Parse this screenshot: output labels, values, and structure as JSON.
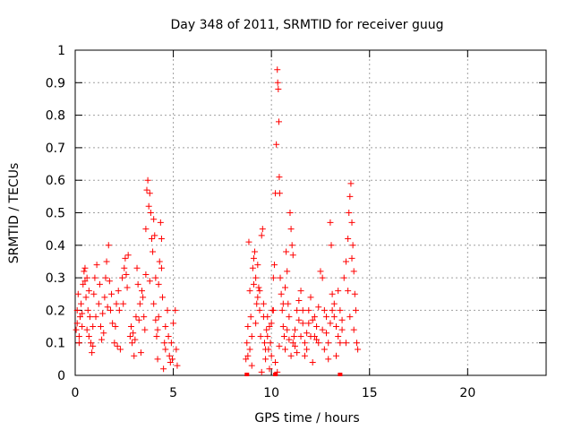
{
  "chart_data": {
    "type": "scatter",
    "title": "Day 348 of 2011, SRMTID for receiver guug",
    "xlabel": "GPS time / hours",
    "ylabel": "SRMTID / TECUs",
    "xlim": [
      0,
      24
    ],
    "ylim": [
      0,
      1
    ],
    "xticks": [
      0,
      5,
      10,
      15,
      20
    ],
    "yticks": [
      0,
      0.1,
      0.2,
      0.3,
      0.4,
      0.5,
      0.6,
      0.7,
      0.8,
      0.9,
      1
    ],
    "xtick_labels": [
      "0",
      "5",
      "10",
      "15",
      "20"
    ],
    "ytick_labels": [
      "0",
      "0.1",
      "0.2",
      "0.3",
      "0.4",
      "0.5",
      "0.6",
      "0.7",
      "0.8",
      "0.9",
      "1"
    ],
    "grid": true,
    "marker": "plus",
    "color": "#ff0000",
    "series": [
      {
        "points": [
          [
            0.05,
            0.14
          ],
          [
            0.1,
            0.2
          ],
          [
            0.15,
            0.25
          ],
          [
            0.2,
            0.1
          ],
          [
            0.25,
            0.18
          ],
          [
            0.3,
            0.22
          ],
          [
            0.35,
            0.15
          ],
          [
            0.4,
            0.28
          ],
          [
            0.45,
            0.32
          ],
          [
            0.5,
            0.33
          ],
          [
            0.55,
            0.24
          ],
          [
            0.6,
            0.3
          ],
          [
            0.65,
            0.2
          ],
          [
            0.7,
            0.12
          ],
          [
            0.75,
            0.18
          ],
          [
            0.8,
            0.1
          ],
          [
            0.85,
            0.07
          ],
          [
            0.9,
            0.09
          ],
          [
            0.95,
            0.25
          ],
          [
            1.0,
            0.3
          ],
          [
            1.1,
            0.34
          ],
          [
            1.2,
            0.22
          ],
          [
            1.3,
            0.15
          ],
          [
            1.4,
            0.19
          ],
          [
            1.5,
            0.24
          ],
          [
            1.6,
            0.35
          ],
          [
            1.7,
            0.4
          ],
          [
            1.75,
            0.29
          ],
          [
            1.8,
            0.2
          ],
          [
            1.9,
            0.16
          ],
          [
            2.0,
            0.1
          ],
          [
            2.1,
            0.22
          ],
          [
            2.2,
            0.26
          ],
          [
            2.3,
            0.08
          ],
          [
            2.4,
            0.3
          ],
          [
            2.5,
            0.33
          ],
          [
            2.6,
            0.31
          ],
          [
            2.7,
            0.37
          ],
          [
            2.8,
            0.12
          ],
          [
            2.9,
            0.1
          ],
          [
            3.0,
            0.06
          ],
          [
            3.1,
            0.18
          ],
          [
            3.2,
            0.28
          ],
          [
            3.3,
            0.22
          ],
          [
            3.4,
            0.26
          ],
          [
            3.5,
            0.18
          ],
          [
            3.55,
            0.14
          ],
          [
            3.6,
            0.45
          ],
          [
            3.65,
            0.57
          ],
          [
            3.7,
            0.6
          ],
          [
            3.75,
            0.52
          ],
          [
            3.8,
            0.56
          ],
          [
            3.85,
            0.5
          ],
          [
            3.9,
            0.42
          ],
          [
            3.95,
            0.38
          ],
          [
            4.0,
            0.48
          ],
          [
            4.05,
            0.43
          ],
          [
            4.1,
            0.3
          ],
          [
            4.15,
            0.12
          ],
          [
            4.2,
            0.05
          ],
          [
            4.25,
            0.18
          ],
          [
            4.3,
            0.35
          ],
          [
            4.35,
            0.47
          ],
          [
            4.4,
            0.42
          ],
          [
            4.45,
            0.24
          ],
          [
            4.5,
            0.02
          ],
          [
            4.55,
            0.1
          ],
          [
            4.6,
            0.15
          ],
          [
            4.7,
            0.2
          ],
          [
            4.8,
            0.06
          ],
          [
            4.9,
            0.1
          ],
          [
            5.0,
            0.16
          ],
          [
            5.1,
            0.2
          ],
          [
            5.15,
            0.08
          ],
          [
            5.2,
            0.03
          ],
          [
            0.1,
            0.16
          ],
          [
            0.2,
            0.12
          ],
          [
            0.35,
            0.19
          ],
          [
            0.5,
            0.29
          ],
          [
            0.7,
            0.26
          ],
          [
            0.9,
            0.15
          ],
          [
            1.05,
            0.18
          ],
          [
            1.25,
            0.28
          ],
          [
            1.45,
            0.13
          ],
          [
            1.65,
            0.21
          ],
          [
            1.85,
            0.25
          ],
          [
            2.05,
            0.15
          ],
          [
            2.25,
            0.2
          ],
          [
            2.45,
            0.22
          ],
          [
            2.65,
            0.27
          ],
          [
            2.85,
            0.15
          ],
          [
            3.05,
            0.11
          ],
          [
            3.25,
            0.17
          ],
          [
            3.45,
            0.24
          ],
          [
            3.6,
            0.31
          ],
          [
            3.8,
            0.29
          ],
          [
            4.0,
            0.22
          ],
          [
            4.2,
            0.14
          ],
          [
            4.4,
            0.33
          ],
          [
            4.6,
            0.08
          ],
          [
            4.75,
            0.12
          ],
          [
            4.95,
            0.05
          ],
          [
            0.6,
            0.14
          ],
          [
            1.35,
            0.11
          ],
          [
            2.15,
            0.09
          ],
          [
            2.95,
            0.13
          ],
          [
            3.35,
            0.07
          ],
          [
            4.1,
            0.17
          ],
          [
            4.85,
            0.04
          ],
          [
            1.55,
            0.3
          ],
          [
            2.55,
            0.36
          ],
          [
            3.15,
            0.33
          ],
          [
            4.25,
            0.28
          ],
          [
            8.7,
            0.05
          ],
          [
            8.75,
            0.1
          ],
          [
            8.8,
            0.15
          ],
          [
            8.85,
            0.41
          ],
          [
            8.9,
            0.26
          ],
          [
            8.95,
            0.18
          ],
          [
            9.0,
            0.03
          ],
          [
            9.05,
            0.33
          ],
          [
            9.1,
            0.36
          ],
          [
            9.15,
            0.38
          ],
          [
            9.2,
            0.3
          ],
          [
            9.25,
            0.22
          ],
          [
            9.3,
            0.34
          ],
          [
            9.35,
            0.27
          ],
          [
            9.4,
            0.2
          ],
          [
            9.45,
            0.12
          ],
          [
            9.5,
            0.43
          ],
          [
            9.55,
            0.45
          ],
          [
            9.6,
            0.22
          ],
          [
            9.65,
            0.1
          ],
          [
            9.7,
            0.05
          ],
          [
            9.75,
            0.14
          ],
          [
            9.8,
            0.18
          ],
          [
            9.85,
            0.08
          ],
          [
            9.9,
            0.02
          ],
          [
            9.95,
            0.1
          ],
          [
            10.0,
            0.16
          ],
          [
            10.05,
            0.2
          ],
          [
            10.1,
            0.3
          ],
          [
            10.15,
            0.34
          ],
          [
            10.2,
            0.56
          ],
          [
            10.25,
            0.71
          ],
          [
            10.3,
            0.94
          ],
          [
            10.32,
            0.9
          ],
          [
            10.35,
            0.88
          ],
          [
            10.38,
            0.78
          ],
          [
            10.4,
            0.61
          ],
          [
            10.42,
            0.56
          ],
          [
            10.45,
            0.3
          ],
          [
            10.5,
            0.25
          ],
          [
            10.55,
            0.2
          ],
          [
            10.6,
            0.15
          ],
          [
            10.65,
            0.12
          ],
          [
            10.7,
            0.08
          ],
          [
            10.75,
            0.38
          ],
          [
            10.8,
            0.32
          ],
          [
            10.85,
            0.22
          ],
          [
            10.9,
            0.18
          ],
          [
            10.95,
            0.5
          ],
          [
            11.0,
            0.45
          ],
          [
            11.05,
            0.4
          ],
          [
            11.1,
            0.37
          ],
          [
            11.15,
            0.12
          ],
          [
            11.2,
            0.09
          ],
          [
            11.3,
            0.2
          ],
          [
            11.4,
            0.23
          ],
          [
            11.5,
            0.26
          ],
          [
            11.6,
            0.16
          ],
          [
            11.7,
            0.1
          ],
          [
            11.8,
            0.13
          ],
          [
            11.9,
            0.2
          ],
          [
            12.0,
            0.24
          ],
          [
            12.1,
            0.17
          ],
          [
            12.2,
            0.12
          ],
          [
            12.3,
            0.15
          ],
          [
            12.4,
            0.21
          ],
          [
            12.5,
            0.32
          ],
          [
            12.6,
            0.3
          ],
          [
            12.7,
            0.2
          ],
          [
            12.8,
            0.13
          ],
          [
            12.9,
            0.1
          ],
          [
            13.0,
            0.47
          ],
          [
            13.05,
            0.4
          ],
          [
            13.1,
            0.25
          ],
          [
            13.2,
            0.18
          ],
          [
            13.3,
            0.15
          ],
          [
            13.4,
            0.12
          ],
          [
            13.5,
            0.2
          ],
          [
            13.6,
            0.17
          ],
          [
            13.7,
            0.3
          ],
          [
            13.8,
            0.35
          ],
          [
            13.9,
            0.42
          ],
          [
            13.95,
            0.5
          ],
          [
            14.0,
            0.55
          ],
          [
            14.05,
            0.59
          ],
          [
            14.1,
            0.47
          ],
          [
            14.15,
            0.4
          ],
          [
            14.2,
            0.32
          ],
          [
            14.25,
            0.25
          ],
          [
            14.3,
            0.2
          ],
          [
            14.35,
            0.1
          ],
          [
            14.4,
            0.08
          ],
          [
            8.8,
            0.06
          ],
          [
            9.0,
            0.12
          ],
          [
            9.2,
            0.16
          ],
          [
            9.4,
            0.26
          ],
          [
            9.6,
            0.18
          ],
          [
            9.8,
            0.12
          ],
          [
            10.0,
            0.06
          ],
          [
            10.2,
            0.04
          ],
          [
            10.4,
            0.09
          ],
          [
            10.6,
            0.22
          ],
          [
            10.8,
            0.14
          ],
          [
            11.0,
            0.06
          ],
          [
            11.2,
            0.14
          ],
          [
            11.4,
            0.17
          ],
          [
            11.6,
            0.2
          ],
          [
            11.8,
            0.08
          ],
          [
            12.0,
            0.12
          ],
          [
            12.2,
            0.18
          ],
          [
            12.4,
            0.1
          ],
          [
            12.6,
            0.14
          ],
          [
            12.8,
            0.18
          ],
          [
            13.0,
            0.16
          ],
          [
            13.2,
            0.22
          ],
          [
            13.4,
            0.26
          ],
          [
            13.6,
            0.14
          ],
          [
            13.8,
            0.1
          ],
          [
            14.0,
            0.18
          ],
          [
            14.2,
            0.14
          ],
          [
            9.1,
            0.28
          ],
          [
            9.3,
            0.24
          ],
          [
            9.7,
            0.08
          ],
          [
            10.1,
            0.2
          ],
          [
            10.7,
            0.27
          ],
          [
            11.1,
            0.1
          ],
          [
            11.5,
            0.12
          ],
          [
            11.9,
            0.16
          ],
          [
            12.3,
            0.11
          ],
          [
            12.7,
            0.08
          ],
          [
            13.1,
            0.2
          ],
          [
            13.5,
            0.1
          ],
          [
            13.9,
            0.26
          ],
          [
            14.1,
            0.36
          ],
          [
            8.9,
            0.08
          ],
          [
            9.9,
            0.15
          ],
          [
            10.9,
            0.11
          ],
          [
            11.7,
            0.06
          ],
          [
            12.9,
            0.05
          ],
          [
            13.3,
            0.06
          ],
          [
            11.3,
            0.07
          ],
          [
            10.3,
            0.01
          ],
          [
            9.5,
            0.01
          ],
          [
            12.1,
            0.04
          ]
        ]
      }
    ],
    "zero_markers": [
      [
        8.75,
        0
      ],
      [
        10.2,
        0
      ],
      [
        13.5,
        0
      ]
    ]
  }
}
